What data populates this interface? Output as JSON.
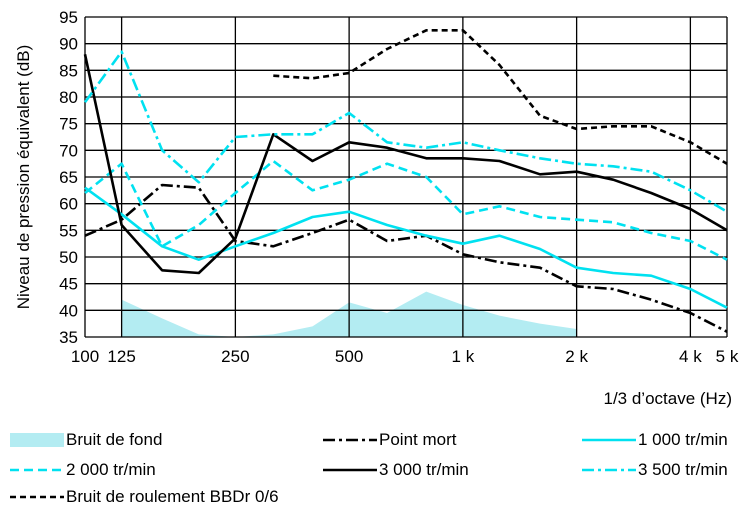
{
  "chart_data": {
    "type": "line",
    "xlabel": "1/3 d’octave (Hz)",
    "ylabel": "Niveau de pression équivalent (dB)",
    "x_scale": "log",
    "xlim": [
      100,
      5000
    ],
    "ylim": [
      35,
      95
    ],
    "grid": true,
    "legend_position": "bottom",
    "x_ticks": [
      {
        "value": 100,
        "label": "100"
      },
      {
        "value": 125,
        "label": "125"
      },
      {
        "value": 250,
        "label": "250"
      },
      {
        "value": 500,
        "label": "500"
      },
      {
        "value": 1000,
        "label": "1 k"
      },
      {
        "value": 2000,
        "label": "2 k"
      },
      {
        "value": 4000,
        "label": "4 k"
      },
      {
        "value": 5000,
        "label": "5 k"
      }
    ],
    "y_ticks": [
      35,
      40,
      45,
      50,
      55,
      60,
      65,
      70,
      75,
      80,
      85,
      90,
      95
    ],
    "area": {
      "name": "Bruit de fond",
      "color": "#b3ecf2",
      "x": [
        125,
        160,
        200,
        250,
        315,
        400,
        500,
        630,
        800,
        1000,
        1250,
        1600,
        2000
      ],
      "y": [
        42,
        38.5,
        35.5,
        35,
        35.5,
        37,
        41.5,
        39.5,
        43.5,
        41,
        39,
        37.5,
        36.5
      ]
    },
    "series": [
      {
        "name": "Point mort",
        "color": "#000000",
        "dash": "dashdot",
        "x": [
          100,
          125,
          160,
          200,
          250,
          315,
          400,
          500,
          630,
          800,
          1000,
          1250,
          1600,
          2000,
          2500,
          3150,
          4000,
          5000
        ],
        "y": [
          54,
          57,
          63.5,
          63,
          53,
          52,
          54.5,
          57,
          53,
          54,
          50.5,
          49,
          48,
          44.5,
          44,
          42,
          39.5,
          36
        ]
      },
      {
        "name": "1 000 tr/min",
        "color": "#00e1f0",
        "dash": "solid",
        "x": [
          100,
          125,
          160,
          200,
          250,
          315,
          400,
          500,
          630,
          800,
          1000,
          1250,
          1600,
          2000,
          2500,
          3150,
          4000,
          5000
        ],
        "y": [
          63,
          58,
          52,
          49.5,
          52,
          54.5,
          57.5,
          58.5,
          56,
          54,
          52.5,
          54,
          51.5,
          48,
          47,
          46.5,
          44,
          40.5
        ]
      },
      {
        "name": "2 000 tr/min",
        "color": "#00e1f0",
        "dash": "dashed",
        "x": [
          100,
          125,
          160,
          200,
          250,
          315,
          400,
          500,
          630,
          800,
          1000,
          1250,
          1600,
          2000,
          2500,
          3150,
          4000,
          5000
        ],
        "y": [
          62,
          67.5,
          52,
          56,
          62,
          68,
          62.5,
          64.5,
          67.5,
          65,
          58,
          59.5,
          57.5,
          57,
          56.5,
          54.5,
          53,
          49.5
        ]
      },
      {
        "name": "3 000 tr/min",
        "color": "#000000",
        "dash": "solid",
        "x": [
          100,
          125,
          160,
          200,
          250,
          315,
          400,
          500,
          630,
          800,
          1000,
          1250,
          1600,
          2000,
          2500,
          3150,
          4000,
          5000
        ],
        "y": [
          88,
          56,
          47.5,
          47,
          53.5,
          73,
          68,
          71.5,
          70.5,
          68.5,
          68.5,
          68,
          65.5,
          66,
          64.5,
          62,
          59,
          55
        ]
      },
      {
        "name": "3 500 tr/min",
        "color": "#00e1f0",
        "dash": "dashdot",
        "x": [
          100,
          125,
          160,
          200,
          250,
          315,
          400,
          500,
          630,
          800,
          1000,
          1250,
          1600,
          2000,
          2500,
          3150,
          4000,
          5000
        ],
        "y": [
          79,
          88.5,
          70,
          64,
          72.5,
          73,
          73,
          77,
          71.5,
          70.5,
          71.5,
          70,
          68.5,
          67.5,
          67,
          66,
          62.5,
          58.5
        ]
      },
      {
        "name": "Bruit de roulement BBDr 0/6",
        "color": "#000000",
        "dash": "shortdash",
        "x": [
          315,
          400,
          500,
          630,
          800,
          1000,
          1250,
          1600,
          2000,
          2500,
          3150,
          4000,
          5000
        ],
        "y": [
          84,
          83.5,
          84.5,
          89,
          92.5,
          92.5,
          86,
          76.5,
          74,
          74.5,
          74.5,
          71.5,
          67.5
        ]
      }
    ]
  },
  "legend": [
    {
      "label": "Bruit de fond",
      "style": "area",
      "color": "#b3ecf2"
    },
    {
      "label": "Point mort",
      "style": "dashdot",
      "color": "#000000"
    },
    {
      "label": "1 000 tr/min",
      "style": "solid",
      "color": "#00e1f0"
    },
    {
      "label": "2 000 tr/min",
      "style": "dashed",
      "color": "#00e1f0"
    },
    {
      "label": "3 000 tr/min",
      "style": "solid",
      "color": "#000000"
    },
    {
      "label": "3 500 tr/min",
      "style": "dashdot",
      "color": "#00e1f0"
    },
    {
      "label": "Bruit de roulement BBDr 0/6",
      "style": "shortdash",
      "color": "#000000"
    }
  ]
}
